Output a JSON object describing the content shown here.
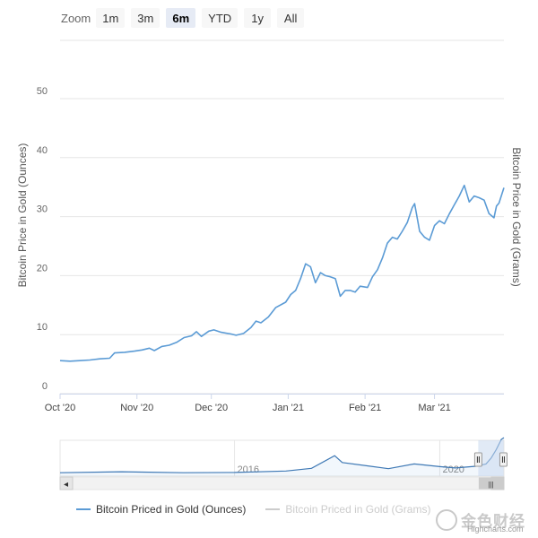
{
  "zoom": {
    "label": "Zoom",
    "buttons": [
      "1m",
      "3m",
      "6m",
      "YTD",
      "1y",
      "All"
    ],
    "active": "6m"
  },
  "colors": {
    "series": "#5b9bd5",
    "series_hidden": "#cccccc",
    "grid": "#e6e6e6",
    "navigator_mask": "#c8d9ee"
  },
  "chart_data": {
    "type": "line",
    "ylabel": "Bitcoin Price in Gold (Ounces)",
    "ylabel_right": "Bitcoin Price in Gold (Grams)",
    "ylim": [
      0,
      50
    ],
    "yticks": [
      0,
      10,
      20,
      30,
      40,
      50
    ],
    "xlim": [
      "2020-10-01",
      "2021-03-29"
    ],
    "xticks": [
      {
        "date": "2020-10-01",
        "label": "Oct '20"
      },
      {
        "date": "2020-11-01",
        "label": "Nov '20"
      },
      {
        "date": "2020-12-01",
        "label": "Dec '20"
      },
      {
        "date": "2021-01-01",
        "label": "Jan '21"
      },
      {
        "date": "2021-02-01",
        "label": "Feb '21"
      },
      {
        "date": "2021-03-01",
        "label": "Mar '21"
      }
    ],
    "grid": true,
    "legend_position": "bottom-left",
    "series": [
      {
        "name": "Bitcoin Priced in Gold (Ounces)",
        "visible": true,
        "points": [
          [
            "2020-10-01",
            5.6
          ],
          [
            "2020-10-05",
            5.5
          ],
          [
            "2020-10-09",
            5.6
          ],
          [
            "2020-10-13",
            5.7
          ],
          [
            "2020-10-17",
            5.9
          ],
          [
            "2020-10-21",
            6.0
          ],
          [
            "2020-10-23",
            6.9
          ],
          [
            "2020-10-27",
            7.0
          ],
          [
            "2020-10-31",
            7.2
          ],
          [
            "2020-11-03",
            7.4
          ],
          [
            "2020-11-06",
            7.7
          ],
          [
            "2020-11-08",
            7.3
          ],
          [
            "2020-11-11",
            8.0
          ],
          [
            "2020-11-14",
            8.2
          ],
          [
            "2020-11-17",
            8.7
          ],
          [
            "2020-11-20",
            9.5
          ],
          [
            "2020-11-23",
            9.8
          ],
          [
            "2020-11-25",
            10.5
          ],
          [
            "2020-11-27",
            9.7
          ],
          [
            "2020-11-30",
            10.6
          ],
          [
            "2020-12-02",
            10.8
          ],
          [
            "2020-12-05",
            10.4
          ],
          [
            "2020-12-09",
            10.1
          ],
          [
            "2020-12-11",
            9.9
          ],
          [
            "2020-12-14",
            10.2
          ],
          [
            "2020-12-17",
            11.2
          ],
          [
            "2020-12-19",
            12.3
          ],
          [
            "2020-12-21",
            12.0
          ],
          [
            "2020-12-24",
            13.0
          ],
          [
            "2020-12-27",
            14.6
          ],
          [
            "2020-12-31",
            15.5
          ],
          [
            "2021-01-02",
            16.8
          ],
          [
            "2021-01-04",
            17.5
          ],
          [
            "2021-01-06",
            19.5
          ],
          [
            "2021-01-08",
            22.0
          ],
          [
            "2021-01-10",
            21.5
          ],
          [
            "2021-01-12",
            18.8
          ],
          [
            "2021-01-14",
            20.5
          ],
          [
            "2021-01-16",
            20.0
          ],
          [
            "2021-01-18",
            19.8
          ],
          [
            "2021-01-20",
            19.5
          ],
          [
            "2021-01-22",
            16.5
          ],
          [
            "2021-01-24",
            17.5
          ],
          [
            "2021-01-26",
            17.5
          ],
          [
            "2021-01-28",
            17.2
          ],
          [
            "2021-01-30",
            18.2
          ],
          [
            "2021-02-02",
            18.0
          ],
          [
            "2021-02-04",
            19.8
          ],
          [
            "2021-02-06",
            21.0
          ],
          [
            "2021-02-08",
            23.0
          ],
          [
            "2021-02-10",
            25.5
          ],
          [
            "2021-02-12",
            26.5
          ],
          [
            "2021-02-14",
            26.2
          ],
          [
            "2021-02-16",
            27.5
          ],
          [
            "2021-02-18",
            29.0
          ],
          [
            "2021-02-20",
            31.5
          ],
          [
            "2021-02-21",
            32.2
          ],
          [
            "2021-02-23",
            27.5
          ],
          [
            "2021-02-25",
            26.5
          ],
          [
            "2021-02-27",
            26.0
          ],
          [
            "2021-03-01",
            28.5
          ],
          [
            "2021-03-03",
            29.3
          ],
          [
            "2021-03-05",
            28.8
          ],
          [
            "2021-03-07",
            30.5
          ],
          [
            "2021-03-09",
            32.0
          ],
          [
            "2021-03-11",
            33.5
          ],
          [
            "2021-03-13",
            35.3
          ],
          [
            "2021-03-15",
            32.5
          ],
          [
            "2021-03-17",
            33.5
          ],
          [
            "2021-03-19",
            33.2
          ],
          [
            "2021-03-21",
            32.8
          ],
          [
            "2021-03-23",
            30.5
          ],
          [
            "2021-03-25",
            29.8
          ],
          [
            "2021-03-26",
            31.8
          ],
          [
            "2021-03-27",
            32.3
          ],
          [
            "2021-03-29",
            34.9
          ]
        ]
      },
      {
        "name": "Bitcoin Priced in Gold (Grams)",
        "visible": false,
        "points": []
      }
    ]
  },
  "navigator": {
    "labels": [
      {
        "text": "2016",
        "year": 2016
      },
      {
        "text": "2020",
        "year": 2020
      }
    ],
    "xlim_years": [
      2012.6,
      2021.25
    ],
    "range_years": [
      2020.75,
      2021.24
    ],
    "scroll_grip": "|||",
    "scroll_left_arrow": "◂",
    "scroll_right_arrow": "▸",
    "series_years": [
      [
        2012.6,
        0.02
      ],
      [
        2013.8,
        0.05
      ],
      [
        2014.2,
        0.04
      ],
      [
        2015.0,
        0.02
      ],
      [
        2016.0,
        0.03
      ],
      [
        2017.0,
        0.07
      ],
      [
        2017.5,
        0.15
      ],
      [
        2017.95,
        0.52
      ],
      [
        2018.1,
        0.32
      ],
      [
        2018.6,
        0.22
      ],
      [
        2019.0,
        0.14
      ],
      [
        2019.5,
        0.28
      ],
      [
        2020.0,
        0.2
      ],
      [
        2020.3,
        0.16
      ],
      [
        2020.7,
        0.21
      ],
      [
        2020.9,
        0.28
      ],
      [
        2021.0,
        0.45
      ],
      [
        2021.1,
        0.7
      ],
      [
        2021.2,
        1.0
      ],
      [
        2021.25,
        1.05
      ]
    ]
  },
  "credits": "Highcharts.com",
  "watermark": "金色财经"
}
